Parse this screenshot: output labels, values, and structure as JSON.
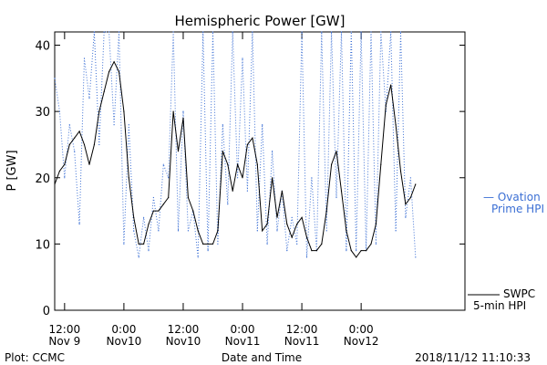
{
  "chart_data": {
    "type": "line",
    "title": "Hemispheric Power [GW]",
    "xlabel": "Date and Time",
    "ylabel": "P [GW]",
    "ylim": [
      0,
      42
    ],
    "yticks": [
      0,
      10,
      20,
      30,
      40
    ],
    "xlim": [
      "2018-11-09 10:00",
      "2018-11-12 21:00"
    ],
    "xticks": [
      {
        "time": "2018-11-09 12:00",
        "top": "12:00",
        "bottom": "Nov 9"
      },
      {
        "time": "2018-11-10 00:00",
        "top": "0:00",
        "bottom": "Nov10"
      },
      {
        "time": "2018-11-10 12:00",
        "top": "12:00",
        "bottom": "Nov10"
      },
      {
        "time": "2018-11-11 00:00",
        "top": "0:00",
        "bottom": "Nov11"
      },
      {
        "time": "2018-11-11 12:00",
        "top": "12:00",
        "bottom": "Nov11"
      },
      {
        "time": "2018-11-12 00:00",
        "top": "0:00",
        "bottom": "Nov12"
      }
    ],
    "grid": false,
    "legend_position": "right",
    "series": [
      {
        "name": "SWPC 5-min HPI",
        "legend_lines": [
          "SWPC",
          "5-min HPI"
        ],
        "color": "#000000",
        "style": "solid",
        "points": [
          [
            "2018-11-09 10:00",
            19
          ],
          [
            "2018-11-09 11:00",
            21
          ],
          [
            "2018-11-09 12:00",
            22
          ],
          [
            "2018-11-09 13:00",
            25
          ],
          [
            "2018-11-09 14:00",
            26
          ],
          [
            "2018-11-09 15:00",
            27
          ],
          [
            "2018-11-09 16:00",
            25
          ],
          [
            "2018-11-09 17:00",
            22
          ],
          [
            "2018-11-09 18:00",
            25
          ],
          [
            "2018-11-09 19:00",
            30
          ],
          [
            "2018-11-09 20:00",
            33
          ],
          [
            "2018-11-09 21:00",
            36
          ],
          [
            "2018-11-09 22:00",
            37.5
          ],
          [
            "2018-11-09 23:00",
            36
          ],
          [
            "2018-11-10 00:00",
            30
          ],
          [
            "2018-11-10 01:00",
            20
          ],
          [
            "2018-11-10 02:00",
            14
          ],
          [
            "2018-11-10 03:00",
            10
          ],
          [
            "2018-11-10 04:00",
            10
          ],
          [
            "2018-11-10 05:00",
            13
          ],
          [
            "2018-11-10 06:00",
            15
          ],
          [
            "2018-11-10 07:00",
            15
          ],
          [
            "2018-11-10 08:00",
            16
          ],
          [
            "2018-11-10 09:00",
            17
          ],
          [
            "2018-11-10 10:00",
            30
          ],
          [
            "2018-11-10 11:00",
            24
          ],
          [
            "2018-11-10 12:00",
            29
          ],
          [
            "2018-11-10 13:00",
            17
          ],
          [
            "2018-11-10 14:00",
            15
          ],
          [
            "2018-11-10 15:00",
            12
          ],
          [
            "2018-11-10 16:00",
            10
          ],
          [
            "2018-11-10 17:00",
            10
          ],
          [
            "2018-11-10 18:00",
            10
          ],
          [
            "2018-11-10 19:00",
            12
          ],
          [
            "2018-11-10 20:00",
            24
          ],
          [
            "2018-11-10 21:00",
            22
          ],
          [
            "2018-11-10 22:00",
            18
          ],
          [
            "2018-11-10 23:00",
            22
          ],
          [
            "2018-11-11 00:00",
            20
          ],
          [
            "2018-11-11 01:00",
            25
          ],
          [
            "2018-11-11 02:00",
            26
          ],
          [
            "2018-11-11 03:00",
            22
          ],
          [
            "2018-11-11 04:00",
            12
          ],
          [
            "2018-11-11 05:00",
            13
          ],
          [
            "2018-11-11 06:00",
            20
          ],
          [
            "2018-11-11 07:00",
            14
          ],
          [
            "2018-11-11 08:00",
            18
          ],
          [
            "2018-11-11 09:00",
            13
          ],
          [
            "2018-11-11 10:00",
            11
          ],
          [
            "2018-11-11 11:00",
            13
          ],
          [
            "2018-11-11 12:00",
            14
          ],
          [
            "2018-11-11 13:00",
            11
          ],
          [
            "2018-11-11 14:00",
            9
          ],
          [
            "2018-11-11 15:00",
            9
          ],
          [
            "2018-11-11 16:00",
            10
          ],
          [
            "2018-11-11 17:00",
            15
          ],
          [
            "2018-11-11 18:00",
            22
          ],
          [
            "2018-11-11 19:00",
            24
          ],
          [
            "2018-11-11 20:00",
            18
          ],
          [
            "2018-11-11 21:00",
            12
          ],
          [
            "2018-11-11 22:00",
            9
          ],
          [
            "2018-11-11 23:00",
            8
          ],
          [
            "2018-11-12 00:00",
            9
          ],
          [
            "2018-11-12 01:00",
            9
          ],
          [
            "2018-11-12 02:00",
            10
          ],
          [
            "2018-11-12 03:00",
            13
          ],
          [
            "2018-11-12 04:00",
            22
          ],
          [
            "2018-11-12 05:00",
            31
          ],
          [
            "2018-11-12 06:00",
            34
          ],
          [
            "2018-11-12 07:00",
            28
          ],
          [
            "2018-11-12 08:00",
            21
          ],
          [
            "2018-11-12 09:00",
            16
          ],
          [
            "2018-11-12 10:00",
            17
          ],
          [
            "2018-11-12 11:00",
            19
          ]
        ]
      },
      {
        "name": "Ovation Prime HPI",
        "legend_lines": [
          "— Ovation",
          "Prime HPI"
        ],
        "color": "#3b6fd4",
        "style": "dotted",
        "points": [
          [
            "2018-11-09 10:00",
            35
          ],
          [
            "2018-11-09 11:00",
            30
          ],
          [
            "2018-11-09 12:00",
            20
          ],
          [
            "2018-11-09 13:00",
            28
          ],
          [
            "2018-11-09 14:00",
            24
          ],
          [
            "2018-11-09 15:00",
            13
          ],
          [
            "2018-11-09 16:00",
            38
          ],
          [
            "2018-11-09 17:00",
            32
          ],
          [
            "2018-11-09 18:00",
            42
          ],
          [
            "2018-11-09 19:00",
            25
          ],
          [
            "2018-11-09 20:00",
            42
          ],
          [
            "2018-11-09 21:00",
            42
          ],
          [
            "2018-11-09 22:00",
            28
          ],
          [
            "2018-11-09 23:00",
            42
          ],
          [
            "2018-11-10 00:00",
            10
          ],
          [
            "2018-11-10 01:00",
            28
          ],
          [
            "2018-11-10 02:00",
            12
          ],
          [
            "2018-11-10 03:00",
            8
          ],
          [
            "2018-11-10 04:00",
            14
          ],
          [
            "2018-11-10 05:00",
            9
          ],
          [
            "2018-11-10 06:00",
            17
          ],
          [
            "2018-11-10 07:00",
            12
          ],
          [
            "2018-11-10 08:00",
            22
          ],
          [
            "2018-11-10 09:00",
            20
          ],
          [
            "2018-11-10 10:00",
            42
          ],
          [
            "2018-11-10 11:00",
            12
          ],
          [
            "2018-11-10 12:00",
            30
          ],
          [
            "2018-11-10 13:00",
            12
          ],
          [
            "2018-11-10 14:00",
            15
          ],
          [
            "2018-11-10 15:00",
            8
          ],
          [
            "2018-11-10 16:00",
            42
          ],
          [
            "2018-11-10 17:00",
            9
          ],
          [
            "2018-11-10 18:00",
            42
          ],
          [
            "2018-11-10 19:00",
            10
          ],
          [
            "2018-11-10 20:00",
            28
          ],
          [
            "2018-11-10 21:00",
            16
          ],
          [
            "2018-11-10 22:00",
            42
          ],
          [
            "2018-11-10 23:00",
            20
          ],
          [
            "2018-11-11 00:00",
            38
          ],
          [
            "2018-11-11 01:00",
            18
          ],
          [
            "2018-11-11 02:00",
            42
          ],
          [
            "2018-11-11 03:00",
            12
          ],
          [
            "2018-11-11 04:00",
            28
          ],
          [
            "2018-11-11 05:00",
            10
          ],
          [
            "2018-11-11 06:00",
            24
          ],
          [
            "2018-11-11 07:00",
            12
          ],
          [
            "2018-11-11 08:00",
            18
          ],
          [
            "2018-11-11 09:00",
            9
          ],
          [
            "2018-11-11 10:00",
            14
          ],
          [
            "2018-11-11 11:00",
            10
          ],
          [
            "2018-11-11 12:00",
            42
          ],
          [
            "2018-11-11 13:00",
            8
          ],
          [
            "2018-11-11 14:00",
            20
          ],
          [
            "2018-11-11 15:00",
            9
          ],
          [
            "2018-11-11 16:00",
            42
          ],
          [
            "2018-11-11 17:00",
            12
          ],
          [
            "2018-11-11 18:00",
            42
          ],
          [
            "2018-11-11 19:00",
            17
          ],
          [
            "2018-11-11 20:00",
            42
          ],
          [
            "2018-11-11 21:00",
            9
          ],
          [
            "2018-11-11 22:00",
            42
          ],
          [
            "2018-11-11 23:00",
            9
          ],
          [
            "2018-11-12 00:00",
            42
          ],
          [
            "2018-11-12 01:00",
            9
          ],
          [
            "2018-11-12 02:00",
            42
          ],
          [
            "2018-11-12 03:00",
            10
          ],
          [
            "2018-11-12 04:00",
            42
          ],
          [
            "2018-11-12 05:00",
            30
          ],
          [
            "2018-11-12 06:00",
            42
          ],
          [
            "2018-11-12 07:00",
            12
          ],
          [
            "2018-11-12 08:00",
            42
          ],
          [
            "2018-11-12 09:00",
            14
          ],
          [
            "2018-11-12 10:00",
            20
          ],
          [
            "2018-11-12 11:00",
            8
          ]
        ]
      }
    ]
  },
  "footer": {
    "credit": "Plot: CCMC",
    "timestamp": "2018/11/12 11:10:33"
  }
}
